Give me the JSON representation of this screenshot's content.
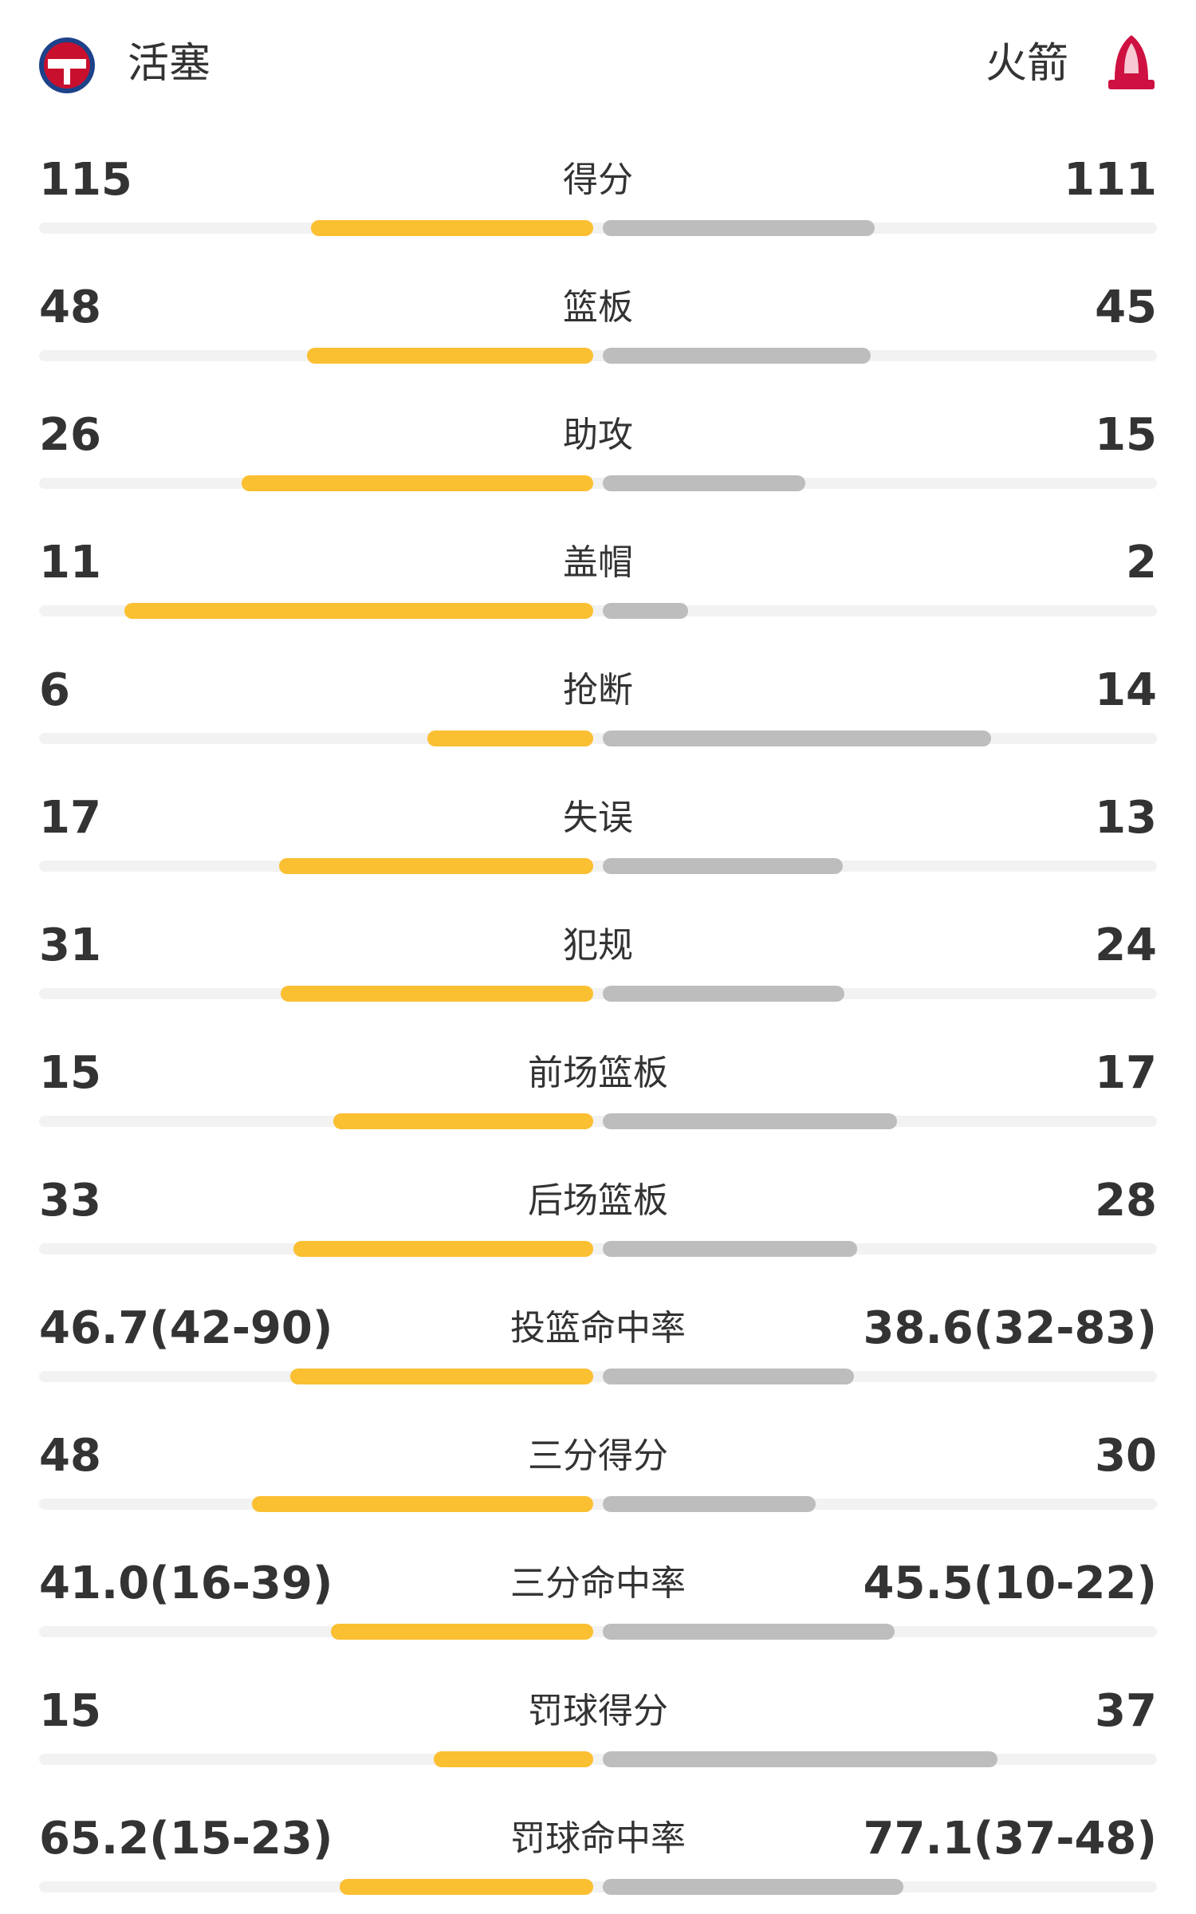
{
  "header": {
    "home": "活塞",
    "away": "火箭"
  },
  "colors": {
    "home": "#fbbf32",
    "away": "#bdbdbd"
  },
  "rows": [
    {
      "label": "得分",
      "left": 115,
      "right": 111
    },
    {
      "label": "篮板",
      "left": 48,
      "right": 45
    },
    {
      "label": "助攻",
      "left": 26,
      "right": 15
    },
    {
      "label": "盖帽",
      "left": 11,
      "right": 2
    },
    {
      "label": "抢断",
      "left": 6,
      "right": 14
    },
    {
      "label": "失误",
      "left": 17,
      "right": 13
    },
    {
      "label": "犯规",
      "left": 31,
      "right": 24
    },
    {
      "label": "前场篮板",
      "left": 15,
      "right": 17
    },
    {
      "label": "后场篮板",
      "left": 33,
      "right": 28
    },
    {
      "label": "投篮命中率",
      "left": {
        "value": 46.7,
        "label": "46.7(42-90)"
      },
      "right": {
        "value": 38.6,
        "label": "38.6(32-83)"
      }
    },
    {
      "label": "三分得分",
      "left": 48,
      "right": 30
    },
    {
      "label": "三分命中率",
      "left": {
        "value": 41.0,
        "label": "41.0(16-39)"
      },
      "right": {
        "value": 45.5,
        "label": "45.5(10-22)"
      }
    },
    {
      "label": "罚球得分",
      "left": 15,
      "right": 37
    },
    {
      "label": "罚球命中率",
      "left": {
        "value": 65.2,
        "label": "65.2(15-23)"
      },
      "right": {
        "value": 77.1,
        "label": "77.1(37-48)"
      }
    }
  ]
}
